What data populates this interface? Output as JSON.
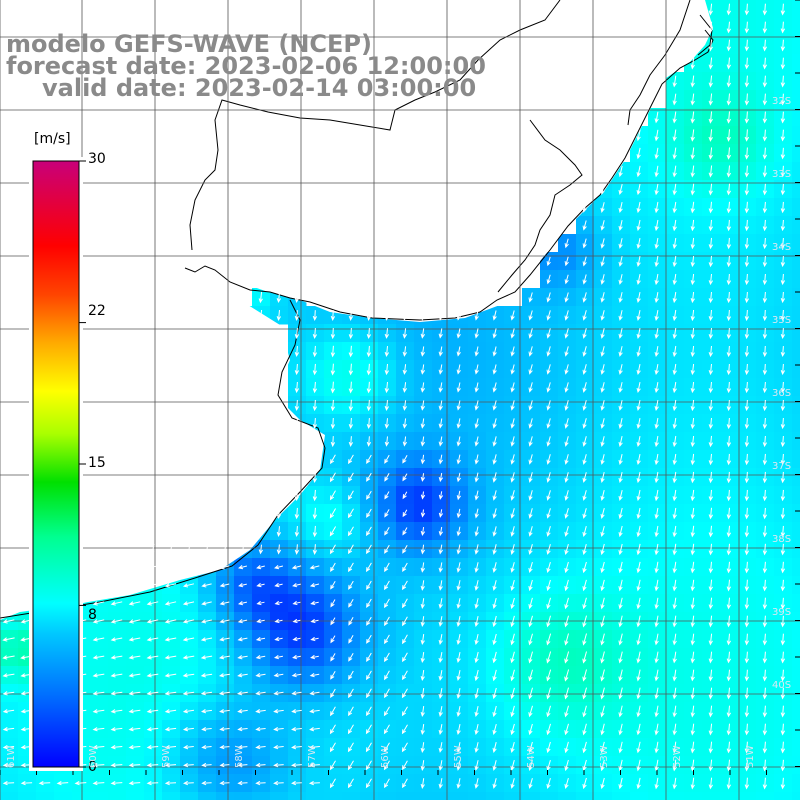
{
  "title": {
    "line1": "modelo GEFS-WAVE (NCEP)",
    "line2": "forecast date: 2023-02-06 12:00:00",
    "line3": "valid date: 2023-02-14 03:00:00"
  },
  "colorbar": {
    "unit": "[m/s]",
    "min": 0,
    "max": 30,
    "ticks": [
      "30",
      "22",
      "15",
      "8",
      "0"
    ],
    "tick_values": [
      30,
      22,
      15,
      8,
      0
    ],
    "colors": [
      "#0000ff",
      "#0066ff",
      "#00aaff",
      "#00ffff",
      "#00ff99",
      "#00e600",
      "#99ff00",
      "#ffff00",
      "#ffaa00",
      "#ff5500",
      "#ff0000",
      "#e6004c",
      "#cc0077"
    ]
  },
  "map": {
    "variable": "wind speed and direction",
    "land_color": "#ffffff",
    "coastline_color": "#000000",
    "gridline_color": "#555555",
    "arrow_color": "#ffffff",
    "lon_labels": [
      "61W",
      "60W",
      "59W",
      "58W",
      "57W",
      "56W",
      "55W",
      "54W",
      "53W",
      "52W",
      "51W"
    ],
    "lat_labels": [
      "32S",
      "33S",
      "34S",
      "35S",
      "36S",
      "37S",
      "38S",
      "39S",
      "40S"
    ],
    "wind_field": {
      "dominant_direction": "from north-northeast, toward south-southwest",
      "typical_speed_range_m_s": [
        3,
        9
      ]
    }
  }
}
